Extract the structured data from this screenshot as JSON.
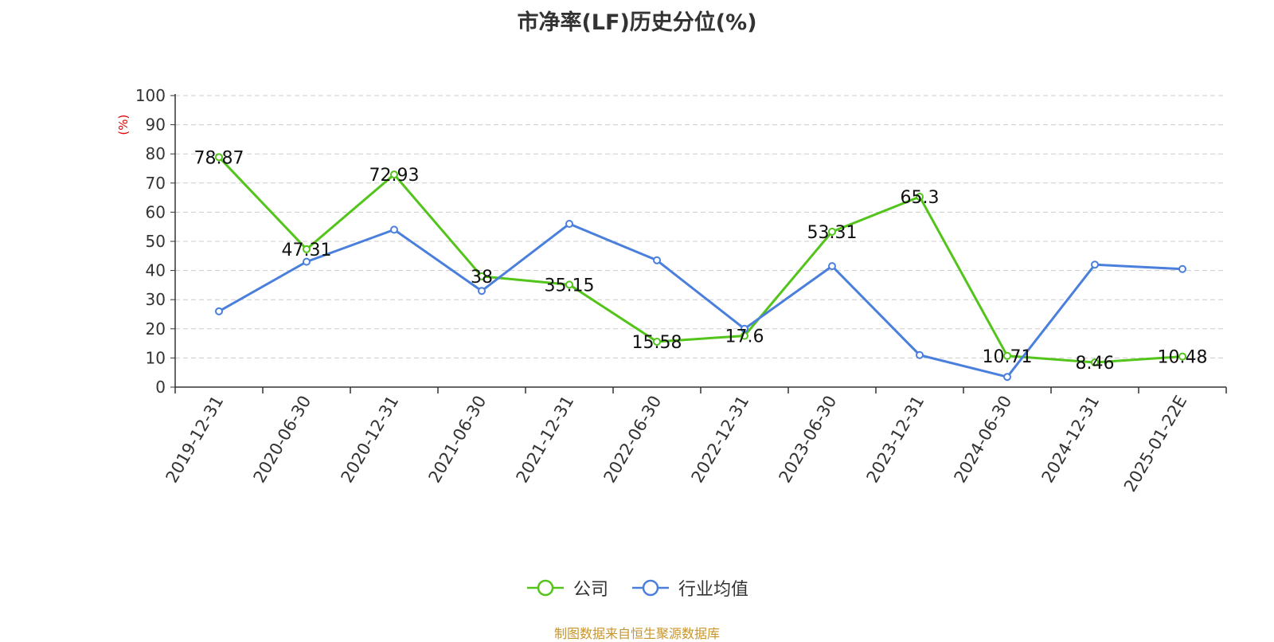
{
  "chart_data": {
    "type": "line",
    "title": "市净率(LF)历史分位(%)",
    "ylabel": "(%)",
    "ylim": [
      0,
      100
    ],
    "yticks": [
      "0",
      "10",
      "20",
      "30",
      "40",
      "50",
      "60",
      "70",
      "80",
      "90",
      "100"
    ],
    "categories": [
      "2019-12-31",
      "2020-06-30",
      "2020-12-31",
      "2021-06-30",
      "2021-12-31",
      "2022-06-30",
      "2022-12-31",
      "2023-06-30",
      "2023-12-31",
      "2024-06-30",
      "2024-12-31",
      "2025-01-22E"
    ],
    "series": [
      {
        "name": "公司",
        "color": "#52c41a",
        "values": [
          78.87,
          47.31,
          72.93,
          38,
          35.15,
          15.58,
          17.6,
          53.31,
          65.3,
          10.71,
          8.46,
          10.48
        ],
        "labels": [
          "78.87",
          "47.31",
          "72.93",
          "38",
          "35.15",
          "15.58",
          "17.6",
          "53.31",
          "65.3",
          "10.71",
          "8.46",
          "10.48"
        ]
      },
      {
        "name": "行业均值",
        "color": "#4a7fdc",
        "values": [
          26,
          43,
          54,
          33,
          56,
          43.5,
          20,
          41.5,
          11,
          3.5,
          42,
          40.5
        ]
      }
    ],
    "grid": true,
    "legend_position": "bottom"
  },
  "source": "制图数据来自恒生聚源数据库"
}
